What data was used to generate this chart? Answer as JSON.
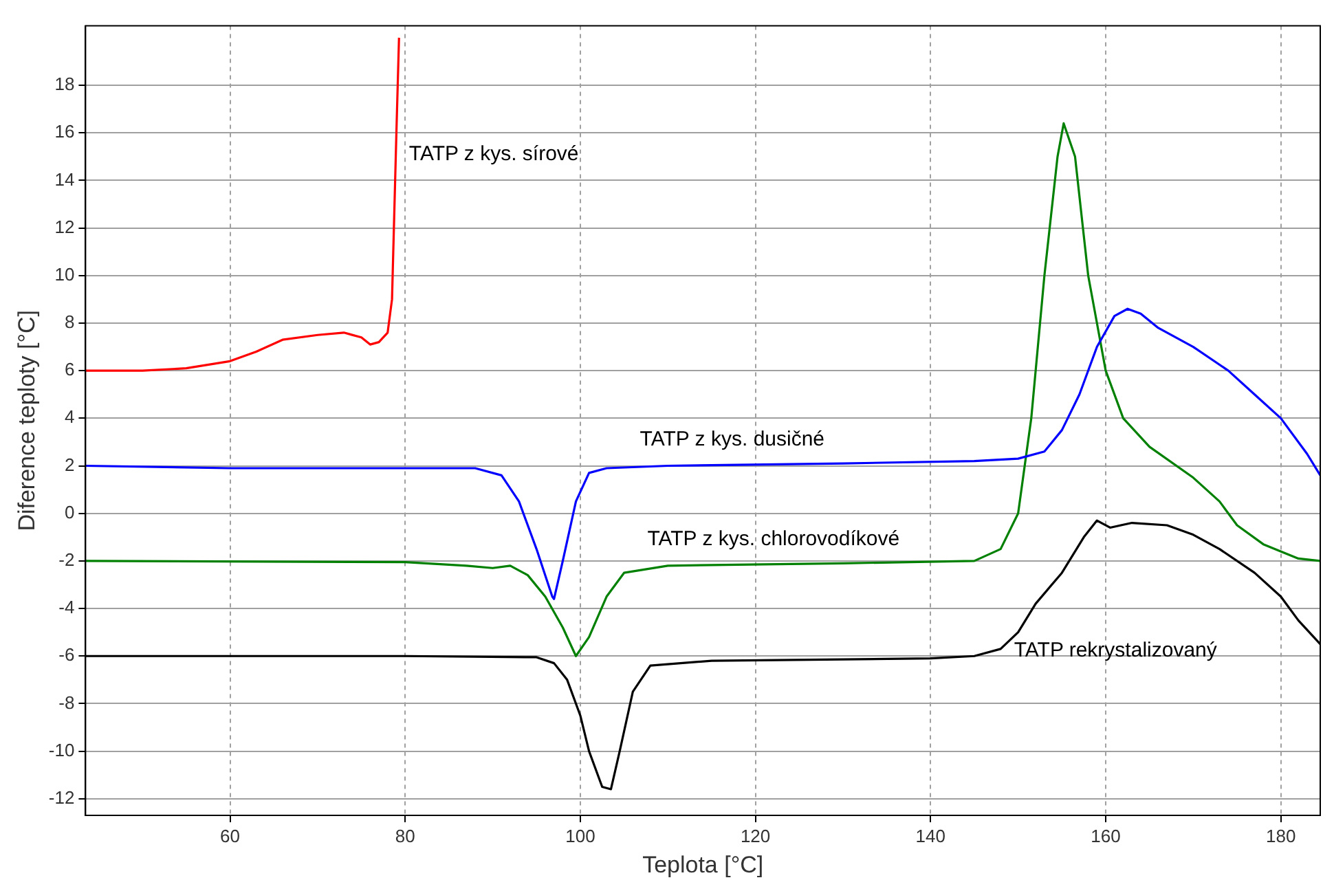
{
  "chart_data": {
    "type": "line",
    "xlabel": "Teplota [°C]",
    "ylabel": "Diference teploty [°C]",
    "xlim": [
      43.5,
      184.5
    ],
    "xticks": [
      60,
      80,
      100,
      120,
      140,
      160,
      180
    ],
    "ylim": [
      -12.7,
      20.5
    ],
    "yticks": [
      -12,
      -10,
      -8,
      -6,
      -4,
      -2,
      0,
      2,
      4,
      6,
      8,
      10,
      12,
      14,
      16,
      18
    ],
    "grid": true,
    "legend": false,
    "marker": "none",
    "line_style": "solid",
    "series": [
      {
        "name": "TATP z kys. sírové",
        "color": "#ff0000",
        "x": [
          43.5,
          50,
          55,
          60,
          63,
          66,
          70,
          73,
          75,
          76,
          77,
          78,
          78.5,
          79,
          79.3
        ],
        "values": [
          6,
          6,
          6.1,
          6.4,
          6.8,
          7.3,
          7.5,
          7.6,
          7.4,
          7.1,
          7.2,
          7.6,
          9,
          16,
          20
        ]
      },
      {
        "name": "TATP z kys. dusičné",
        "color": "#0000ff",
        "x": [
          43.5,
          60,
          80,
          88,
          91,
          93,
          95,
          96.8,
          97,
          98,
          99.5,
          101,
          103,
          110,
          130,
          145,
          150,
          153,
          155,
          157,
          159,
          161,
          162.5,
          164,
          166,
          170,
          174,
          177,
          180,
          183,
          184.5
        ],
        "values": [
          2,
          1.9,
          1.9,
          1.9,
          1.6,
          0.5,
          -1.5,
          -3.5,
          -3.6,
          -2,
          0.5,
          1.7,
          1.9,
          2,
          2.1,
          2.2,
          2.3,
          2.6,
          3.5,
          5,
          7,
          8.3,
          8.6,
          8.4,
          7.8,
          7,
          6,
          5,
          4,
          2.5,
          1.6
        ]
      },
      {
        "name": "TATP z kys. chlorovodíkové",
        "color": "#008000",
        "x": [
          43.5,
          80,
          87,
          90,
          92,
          94,
          96,
          98,
          99.5,
          101,
          103,
          105,
          110,
          130,
          145,
          148,
          150,
          151.5,
          153,
          154.5,
          155.2,
          156.5,
          158,
          160,
          162,
          165,
          170,
          173,
          175,
          178,
          182,
          184.5
        ],
        "values": [
          -2,
          -2.05,
          -2.2,
          -2.3,
          -2.2,
          -2.6,
          -3.5,
          -4.8,
          -6,
          -5.2,
          -3.5,
          -2.5,
          -2.2,
          -2.1,
          -2,
          -1.5,
          0,
          4,
          10,
          15,
          16.4,
          15,
          10,
          6,
          4,
          2.8,
          1.5,
          0.5,
          -0.5,
          -1.3,
          -1.9,
          -2
        ]
      },
      {
        "name": "TATP rekrystalizovaný",
        "color": "#000000",
        "x": [
          43.5,
          80,
          95,
          97,
          98.5,
          100,
          101,
          102.5,
          103.5,
          104.5,
          106,
          108,
          115,
          140,
          145,
          148,
          150,
          152,
          155,
          157.5,
          159,
          160.5,
          163,
          167,
          170,
          173,
          177,
          180,
          182,
          184.5
        ],
        "values": [
          -6,
          -6,
          -6.05,
          -6.3,
          -7,
          -8.5,
          -10,
          -11.5,
          -11.6,
          -10,
          -7.5,
          -6.4,
          -6.2,
          -6.1,
          -6,
          -5.7,
          -5,
          -3.8,
          -2.5,
          -1,
          -0.3,
          -0.6,
          -0.4,
          -0.5,
          -0.9,
          -1.5,
          -2.5,
          -3.5,
          -4.5,
          -5.5
        ]
      }
    ]
  }
}
